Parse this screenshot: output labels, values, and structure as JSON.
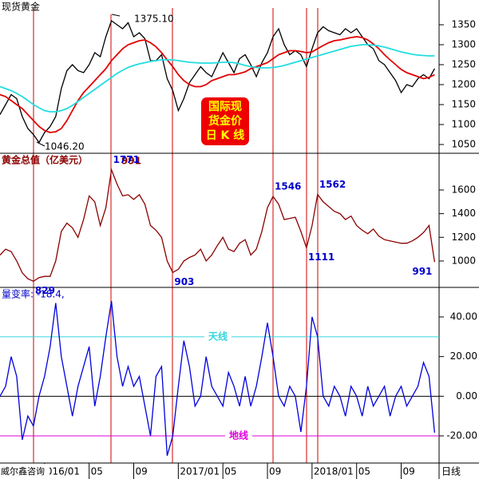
{
  "chart_data": [
    {
      "type": "line",
      "title": "现货黄金",
      "annotations": [
        "1375.10",
        "1046.20"
      ],
      "badge": [
        "国际现",
        "货金价",
        "日 K 线"
      ],
      "xlim": [
        -4,
        35.4
      ],
      "ylim": [
        1028,
        1412
      ],
      "yticks": [
        1050,
        1100,
        1150,
        1200,
        1250,
        1300,
        1350
      ],
      "x": [
        -4,
        -3.5,
        -3,
        -2.5,
        -2,
        -1.5,
        -1,
        -0.5,
        0,
        0.5,
        1,
        1.5,
        2,
        2.5,
        3,
        3.5,
        4,
        4.5,
        5,
        5.5,
        6,
        6.5,
        7,
        7.5,
        8,
        8.5,
        9,
        9.5,
        10,
        10.5,
        11,
        11.5,
        12,
        12.5,
        13,
        13.5,
        14,
        14.5,
        15,
        15.5,
        16,
        16.5,
        17,
        17.5,
        18,
        18.5,
        19,
        19.5,
        20,
        20.5,
        21,
        21.5,
        22,
        22.5,
        23,
        23.5,
        24,
        24.5,
        25,
        25.5,
        26,
        26.5,
        27,
        27.5,
        28,
        28.5,
        29,
        29.5,
        30,
        30.5,
        31,
        31.5,
        32,
        32.5,
        33,
        33.5,
        34,
        34.5,
        35
      ],
      "series": [
        {
          "color": "#000000",
          "values": [
            1125,
            1150,
            1175,
            1165,
            1120,
            1090,
            1075,
            1055,
            1080,
            1095,
            1120,
            1190,
            1235,
            1250,
            1235,
            1230,
            1250,
            1280,
            1270,
            1320,
            1360,
            1350,
            1340,
            1355,
            1320,
            1330,
            1315,
            1260,
            1260,
            1275,
            1215,
            1185,
            1135,
            1165,
            1205,
            1225,
            1245,
            1230,
            1220,
            1250,
            1280,
            1255,
            1230,
            1265,
            1275,
            1250,
            1220,
            1255,
            1280,
            1320,
            1340,
            1300,
            1275,
            1285,
            1275,
            1245,
            1290,
            1330,
            1345,
            1335,
            1330,
            1325,
            1340,
            1330,
            1340,
            1320,
            1300,
            1290,
            1260,
            1250,
            1230,
            1210,
            1180,
            1200,
            1195,
            1215,
            1225,
            1215,
            1240
          ]
        },
        {
          "color": "#e00000",
          "values": [
            1175,
            1170,
            1160,
            1150,
            1140,
            1125,
            1110,
            1095,
            1085,
            1080,
            1082,
            1090,
            1110,
            1135,
            1160,
            1180,
            1195,
            1210,
            1225,
            1240,
            1260,
            1275,
            1290,
            1300,
            1305,
            1310,
            1312,
            1305,
            1295,
            1280,
            1262,
            1245,
            1225,
            1210,
            1200,
            1195,
            1195,
            1200,
            1210,
            1215,
            1220,
            1225,
            1225,
            1228,
            1232,
            1240,
            1245,
            1250,
            1255,
            1265,
            1275,
            1280,
            1285,
            1285,
            1283,
            1280,
            1282,
            1290,
            1298,
            1305,
            1310,
            1312,
            1315,
            1318,
            1320,
            1318,
            1312,
            1302,
            1290,
            1275,
            1262,
            1250,
            1238,
            1230,
            1225,
            1220,
            1215,
            1218,
            1225
          ]
        },
        {
          "color": "#22dde0",
          "values": [
            1195,
            1190,
            1185,
            1178,
            1170,
            1160,
            1150,
            1142,
            1135,
            1132,
            1132,
            1135,
            1140,
            1148,
            1158,
            1168,
            1178,
            1188,
            1198,
            1208,
            1218,
            1228,
            1236,
            1243,
            1248,
            1252,
            1255,
            1258,
            1260,
            1262,
            1262,
            1262,
            1260,
            1258,
            1256,
            1255,
            1254,
            1254,
            1254,
            1255,
            1256,
            1256,
            1255,
            1252,
            1248,
            1245,
            1243,
            1242,
            1242,
            1243,
            1245,
            1248,
            1252,
            1256,
            1260,
            1264,
            1268,
            1272,
            1276,
            1280,
            1284,
            1288,
            1292,
            1296,
            1298,
            1300,
            1300,
            1299,
            1297,
            1294,
            1290,
            1286,
            1282,
            1279,
            1276,
            1274,
            1273,
            1272,
            1272
          ]
        }
      ]
    },
    {
      "type": "line",
      "title": "黄金总值（亿美元）",
      "xlim": [
        -4,
        35.4
      ],
      "ylim": [
        777,
        1910
      ],
      "yticks": [
        1000,
        1200,
        1400,
        1600
      ],
      "x": [
        -4,
        -3.5,
        -3,
        -2.5,
        -2,
        -1.5,
        -1,
        -0.5,
        0,
        0.5,
        1,
        1.5,
        2,
        2.5,
        3,
        3.5,
        4,
        4.5,
        5,
        5.5,
        6,
        6.5,
        7,
        7.5,
        8,
        8.5,
        9,
        9.5,
        10,
        10.5,
        11,
        11.5,
        12,
        12.5,
        13,
        13.5,
        14,
        14.5,
        15,
        15.5,
        16,
        16.5,
        17,
        17.5,
        18,
        18.5,
        19,
        19.5,
        20,
        20.5,
        21,
        21.5,
        22,
        22.5,
        23,
        23.5,
        24,
        24.5,
        25,
        25.5,
        26,
        26.5,
        27,
        27.5,
        28,
        28.5,
        29,
        29.5,
        30,
        30.5,
        31,
        31.5,
        32,
        32.5,
        33,
        33.5,
        34,
        34.5,
        35
      ],
      "series": [
        {
          "color": "#8b0000",
          "values": [
            1050,
            1100,
            1080,
            1000,
            900,
            850,
            829,
            860,
            870,
            870,
            1000,
            1250,
            1320,
            1280,
            1200,
            1350,
            1550,
            1500,
            1300,
            1450,
            1771,
            1650,
            1550,
            1560,
            1520,
            1560,
            1480,
            1300,
            1260,
            1200,
            1000,
            903,
            930,
            1000,
            1030,
            1050,
            1100,
            1000,
            1050,
            1130,
            1200,
            1100,
            1080,
            1150,
            1180,
            1050,
            1100,
            1250,
            1450,
            1546,
            1480,
            1350,
            1360,
            1370,
            1250,
            1111,
            1300,
            1562,
            1500,
            1460,
            1420,
            1400,
            1350,
            1380,
            1300,
            1260,
            1230,
            1270,
            1210,
            1180,
            1170,
            1160,
            1150,
            1150,
            1170,
            1200,
            1240,
            1300,
            991
          ]
        }
      ]
    },
    {
      "type": "line",
      "title": "量变率: -18.4,",
      "xlim": [
        -4,
        35.4
      ],
      "ylim": [
        -33.7,
        54.9
      ],
      "yticks": [
        {
          "value": 40,
          "label": "40.00"
        },
        {
          "value": 20,
          "label": "20.00"
        },
        {
          "value": 0,
          "label": "0.00"
        },
        {
          "value": -20,
          "label": "-20.00"
        }
      ],
      "zero_line": true,
      "reference_lines": [
        {
          "value": 30,
          "label": "天线",
          "color": "#33d6dd"
        },
        {
          "value": -20,
          "label": "地线",
          "color": "#dd00dd"
        }
      ],
      "xticks": [
        {
          "value": 0,
          "label": "016/01"
        },
        {
          "value": 4,
          "label": "05"
        },
        {
          "value": 8,
          "label": "09"
        },
        {
          "value": 12,
          "label": "2017/01"
        },
        {
          "value": 16,
          "label": "05"
        },
        {
          "value": 20,
          "label": "09"
        },
        {
          "value": 24,
          "label": "2018/01"
        },
        {
          "value": 28,
          "label": "05"
        },
        {
          "value": 32,
          "label": "09"
        }
      ],
      "x_label": "日线",
      "footer": "威尔鑫咨询",
      "x": [
        -4,
        -3.5,
        -3,
        -2.5,
        -2,
        -1.5,
        -1,
        -0.5,
        0,
        0.5,
        1,
        1.5,
        2,
        2.5,
        3,
        3.5,
        4,
        4.5,
        5,
        5.5,
        6,
        6.5,
        7,
        7.5,
        8,
        8.5,
        9,
        9.5,
        10,
        10.5,
        11,
        11.5,
        12,
        12.5,
        13,
        13.5,
        14,
        14.5,
        15,
        15.5,
        16,
        16.5,
        17,
        17.5,
        18,
        18.5,
        19,
        19.5,
        20,
        20.5,
        21,
        21.5,
        22,
        22.5,
        23,
        23.5,
        24,
        24.5,
        25,
        25.5,
        26,
        26.5,
        27,
        27.5,
        28,
        28.5,
        29,
        29.5,
        30,
        30.5,
        31,
        31.5,
        32,
        32.5,
        33,
        33.5,
        34,
        34.5,
        35
      ],
      "series": [
        {
          "color": "#0000dd",
          "values": [
            0,
            5,
            20,
            10,
            -22,
            -10,
            -15,
            0,
            10,
            25,
            47,
            20,
            5,
            -10,
            5,
            15,
            25,
            -5,
            10,
            30,
            48,
            20,
            5,
            15,
            5,
            10,
            -5,
            -20,
            10,
            15,
            -30,
            -20,
            5,
            28,
            15,
            -5,
            0,
            20,
            5,
            0,
            -5,
            12,
            5,
            -5,
            10,
            -5,
            5,
            20,
            37,
            20,
            0,
            -5,
            5,
            0,
            -18,
            5,
            40,
            30,
            0,
            -5,
            5,
            0,
            -10,
            5,
            0,
            -10,
            5,
            -5,
            0,
            5,
            -10,
            0,
            5,
            -5,
            0,
            5,
            17,
            10,
            -18.4
          ]
        }
      ]
    }
  ]
}
